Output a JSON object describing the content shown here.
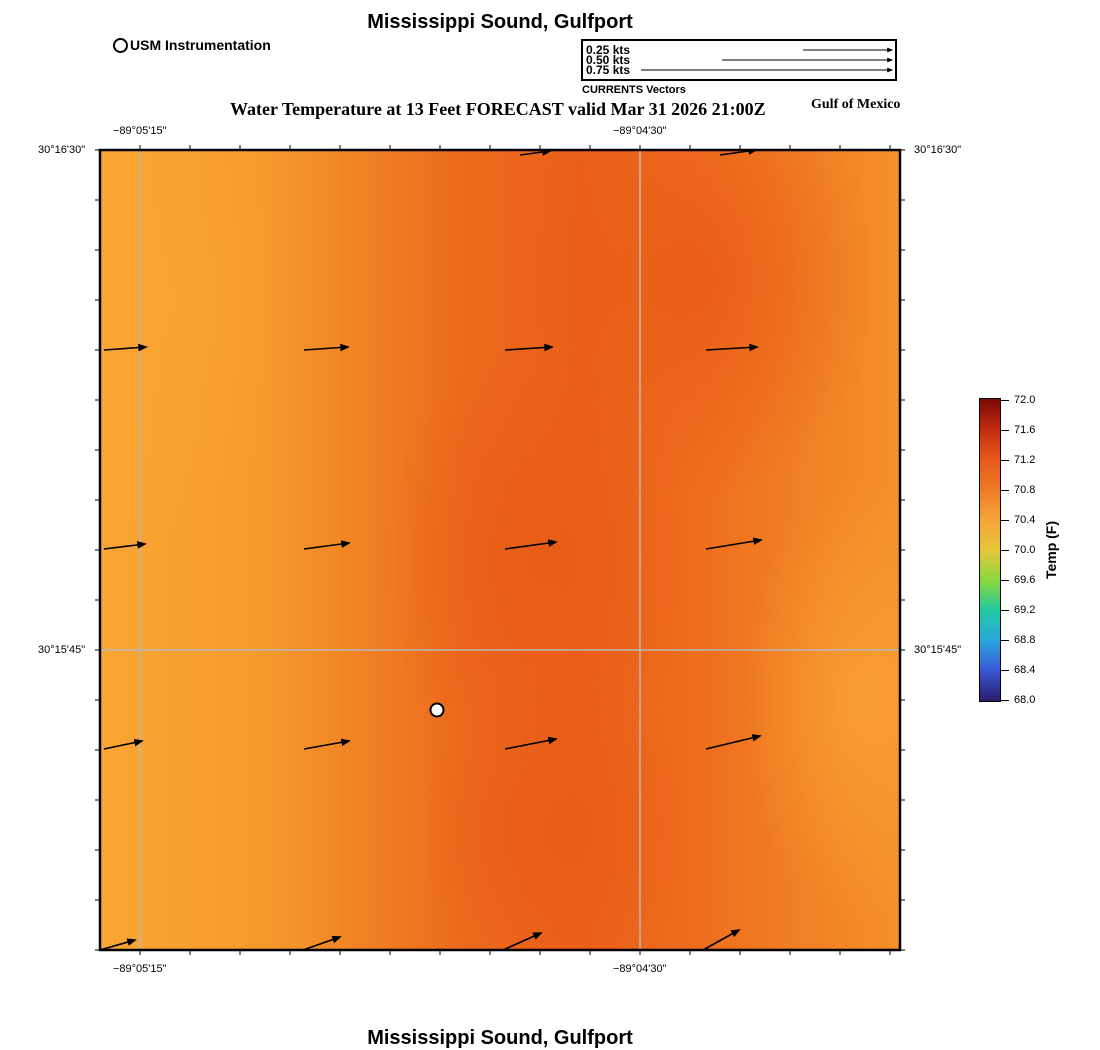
{
  "header": {
    "title": "Mississippi Sound, Gulfport",
    "subtitle": "Water Temperature at 13 Feet FORECAST valid Mar 31 2026 21:00Z",
    "region": "Gulf of Mexico"
  },
  "footer": {
    "title": "Mississippi Sound, Gulfport"
  },
  "legend": {
    "station_label": "USM Instrumentation"
  },
  "vector_key": {
    "caption": "CURRENTS Vectors",
    "entries": [
      "0.25 kts",
      "0.50 kts",
      "0.75 kts"
    ],
    "speeds_kts": [
      0.25,
      0.5,
      0.75
    ]
  },
  "axes": {
    "lon_labels": [
      "−89°05'15\"",
      "−89°04'30\""
    ],
    "lat_labels": [
      "30°16'30\"",
      "30°15'45\""
    ]
  },
  "colorbar": {
    "label": "Temp (F)",
    "ticks": [
      "72.0",
      "71.6",
      "71.2",
      "70.8",
      "70.4",
      "70.0",
      "69.6",
      "69.2",
      "68.8",
      "68.4",
      "68.0"
    ],
    "range": [
      68.0,
      72.0
    ],
    "colors": [
      "#2a1e6b",
      "#3a56d6",
      "#2aa7de",
      "#22c9a0",
      "#8ad83c",
      "#e8c53a",
      "#f5a53a",
      "#ee7a26",
      "#e65a1a",
      "#c02c10",
      "#7a0a04"
    ]
  },
  "map": {
    "station_marker": "usm-instrumentation-station",
    "field_colors": {
      "warm": "#ec5f18",
      "cool": "#faa632"
    }
  }
}
